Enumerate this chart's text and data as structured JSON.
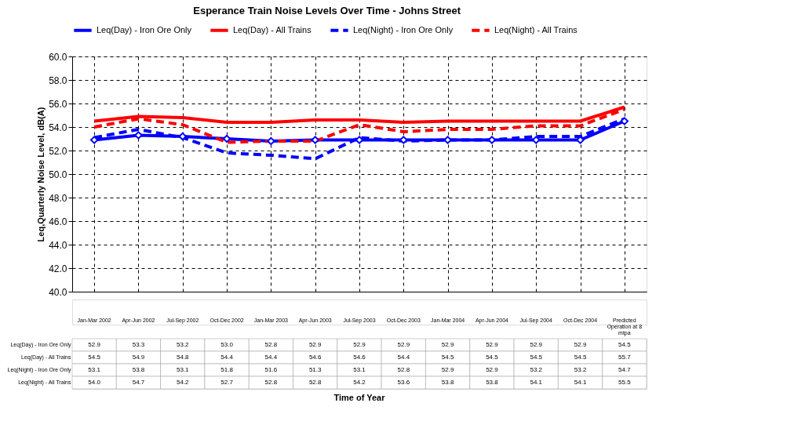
{
  "chart_data": {
    "type": "line",
    "title": "Esperance Train Noise Levels Over Time - Johns Street",
    "annotations": [
      "Time of Year"
    ],
    "ylabel": "Leq,Quarterly Noise Level, dB(A)",
    "categories": [
      "Jan-Mar 2002",
      "Apr-Jun 2002",
      "Jul-Sep 2002",
      "Oct-Dec 2002",
      "Jan-Mar 2003",
      "Apr-Jun 2003",
      "Jul-Sep 2003",
      "Oct-Dec 2003",
      "Jan-Mar 2004",
      "Apr-Jun 2004",
      "Jul-Sep 2004",
      "Oct-Dec 2004",
      "Predicted Operation at 8 mtpa"
    ],
    "series": [
      {
        "name": "Leq(Day) - Iron Ore Only",
        "color": "#0000ff",
        "marker": "diamond",
        "line_style": "solid",
        "values": [
          52.9,
          53.3,
          53.2,
          53.0,
          52.8,
          52.9,
          52.9,
          52.9,
          52.9,
          52.9,
          52.9,
          52.9,
          54.5
        ],
        "value_labels": [
          "52.9",
          "53.3",
          "53.2",
          "53.0",
          "52.8",
          "52.9",
          "52.9",
          "52.9",
          "52.9",
          "52.9",
          "52.9",
          "52.9",
          "54.5"
        ]
      },
      {
        "name": "Leq(Day) - All Trains",
        "color": "#ff0000",
        "marker": "none",
        "line_style": "solid",
        "values": [
          54.5,
          54.9,
          54.8,
          54.4,
          54.4,
          54.6,
          54.6,
          54.4,
          54.5,
          54.5,
          54.5,
          54.5,
          55.7
        ],
        "value_labels": [
          "54.5",
          "54.9",
          "54.8",
          "54.4",
          "54.4",
          "54.6",
          "54.6",
          "54.4",
          "54.5",
          "54.5",
          "54.5",
          "54.5",
          "55.7"
        ]
      },
      {
        "name": "Leq(Night) - Iron Ore Only",
        "color": "#0000ff",
        "marker": "none",
        "line_style": "dashed",
        "values": [
          53.1,
          53.8,
          53.1,
          51.8,
          51.6,
          51.3,
          53.1,
          52.8,
          52.9,
          52.9,
          53.2,
          53.2,
          54.7
        ],
        "value_labels": [
          "53.1",
          "53.8",
          "53.1",
          "51.8",
          "51.6",
          "51.3",
          "53.1",
          "52.8",
          "52.9",
          "52.9",
          "53.2",
          "53.2",
          "54.7"
        ]
      },
      {
        "name": "Leq(Night) - All Trains",
        "color": "#ff0000",
        "marker": "none",
        "line_style": "dashed",
        "values": [
          54.0,
          54.7,
          54.2,
          52.7,
          52.8,
          52.8,
          54.2,
          53.6,
          53.8,
          53.8,
          54.1,
          54.1,
          55.5
        ],
        "value_labels": [
          "54.0",
          "54.7",
          "54.2",
          "52.7",
          "52.8",
          "52.8",
          "54.2",
          "53.6",
          "53.8",
          "53.8",
          "54.1",
          "54.1",
          "55.5"
        ]
      }
    ],
    "ylim": [
      40,
      60
    ],
    "yticks": [
      {
        "value": 40,
        "label": "40.0"
      },
      {
        "value": 42,
        "label": "42.0"
      },
      {
        "value": 44,
        "label": "44.0"
      },
      {
        "value": 46,
        "label": "46.0"
      },
      {
        "value": 48,
        "label": "48.0"
      },
      {
        "value": 50,
        "label": "50.0"
      },
      {
        "value": 52,
        "label": "52.0"
      },
      {
        "value": 54,
        "label": "54.0"
      },
      {
        "value": 56,
        "label": "56.0"
      },
      {
        "value": 58,
        "label": "58.0"
      },
      {
        "value": 60,
        "label": "60.0"
      }
    ],
    "grid": true,
    "legend": "top"
  }
}
